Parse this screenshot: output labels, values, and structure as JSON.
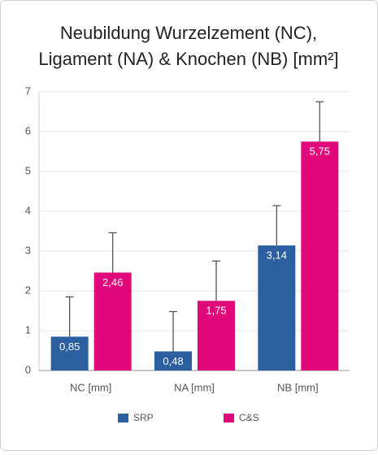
{
  "chart_data": {
    "type": "bar",
    "title": [
      "Neubildung Wurzelzement (NC),",
      "Ligament (NA) & Knochen (NB) [mm²]"
    ],
    "categories": [
      "NC [mm]",
      "NA [mm]",
      "NB [mm]"
    ],
    "series": [
      {
        "name": "SRP",
        "color": "#2b5f9f",
        "values": [
          0.85,
          0.48,
          3.14
        ],
        "value_labels": [
          "0,85",
          "0,48",
          "3,14"
        ],
        "errors": [
          1,
          1,
          1
        ]
      },
      {
        "name": "C&S",
        "color": "#e0087b",
        "values": [
          2.46,
          1.75,
          5.75
        ],
        "value_labels": [
          "2,46",
          "1,75",
          "5,75"
        ],
        "errors": [
          1,
          1,
          1
        ]
      }
    ],
    "ylim": [
      0,
      7
    ],
    "yticks": [
      0,
      1,
      2,
      3,
      4,
      5,
      6,
      7
    ],
    "grid": true,
    "legend": "bottom"
  }
}
